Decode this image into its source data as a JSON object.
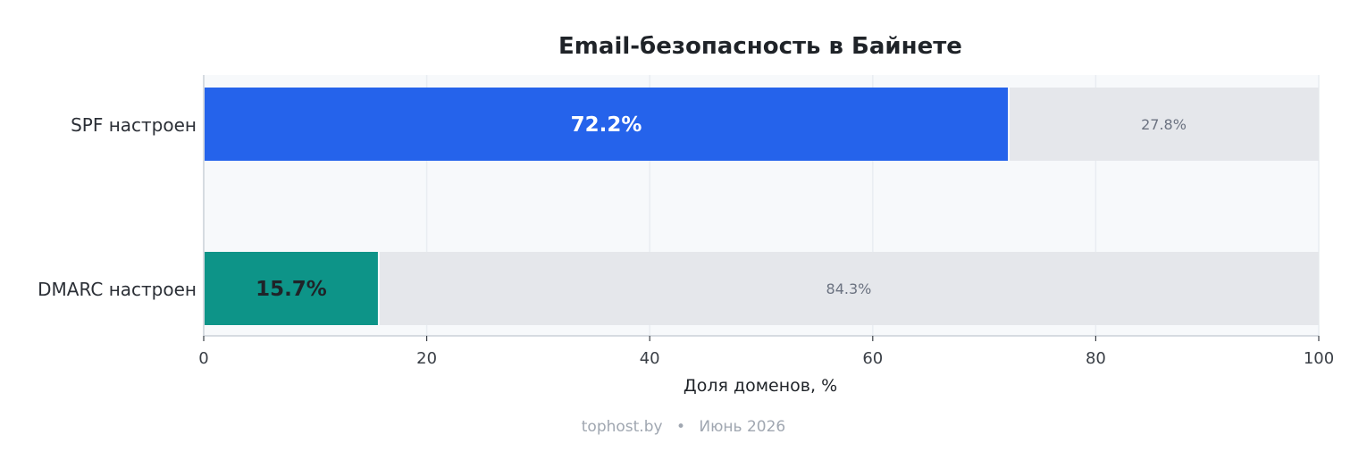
{
  "chart_data": {
    "type": "bar",
    "orientation": "horizontal",
    "stacked": true,
    "title": "Email-безопасность в Байнете",
    "xlabel": "Доля доменов, %",
    "ylabel": "",
    "xlim": [
      0,
      100
    ],
    "xticks": [
      0,
      20,
      40,
      60,
      80,
      100
    ],
    "grid": true,
    "categories": [
      "SPF настроен",
      "DMARC настроен"
    ],
    "series": [
      {
        "values": [
          72.2,
          15.7
        ],
        "labels": [
          "72.2%",
          "15.7%"
        ],
        "colors": [
          "#2563eb",
          "#0d9488"
        ],
        "label_colors": [
          "#ffffff",
          "#1f2328"
        ]
      },
      {
        "values": [
          27.8,
          84.3
        ],
        "labels": [
          "27.8%",
          "84.3%"
        ],
        "color": "#e5e7eb"
      }
    ]
  },
  "footer": {
    "source": "tophost.by",
    "separator": "•",
    "date": "Июнь 2026"
  }
}
